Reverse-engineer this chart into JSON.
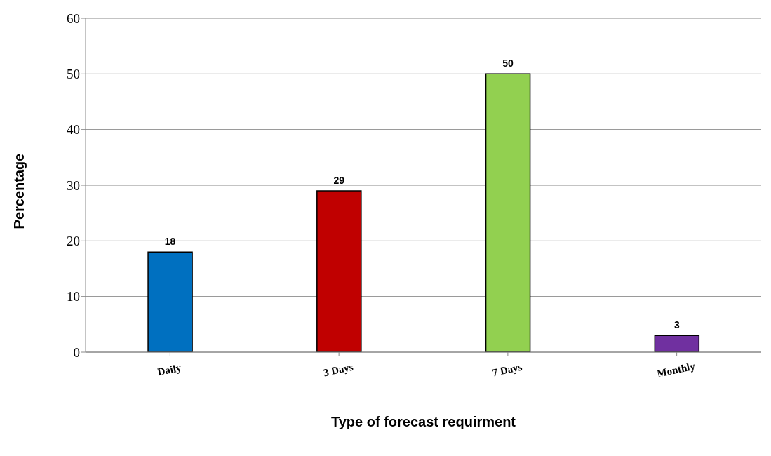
{
  "chart_data": {
    "type": "bar",
    "xlabel": "Type of forecast requirment",
    "ylabel": "Percentage",
    "categories": [
      "Daily",
      "3 Days",
      "7 Days",
      "Monthly"
    ],
    "values": [
      18,
      29,
      50,
      3
    ],
    "colors": [
      "#0070c0",
      "#c00000",
      "#92d050",
      "#7030a0"
    ],
    "ylim": [
      0,
      60
    ],
    "yticks": [
      0,
      10,
      20,
      30,
      40,
      50,
      60
    ],
    "grid": "y",
    "data_labels": true
  }
}
